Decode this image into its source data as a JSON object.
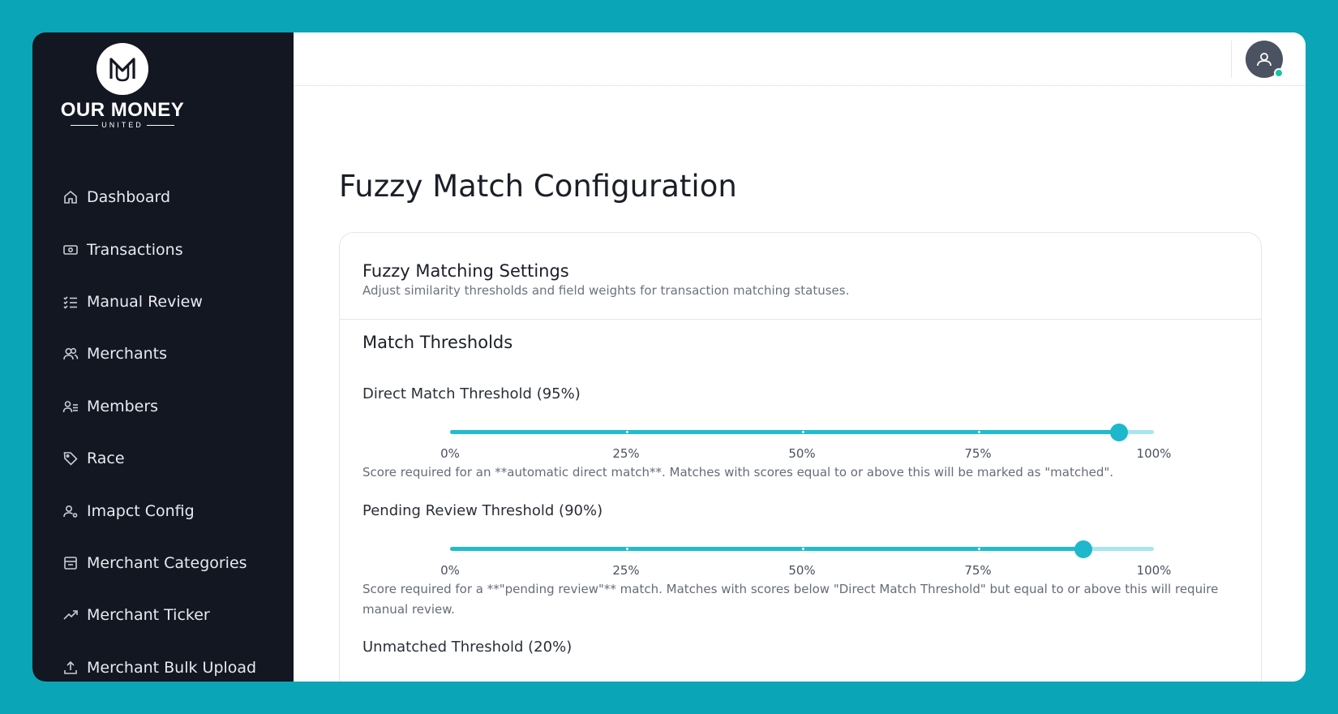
{
  "brand": {
    "name": "OUR MONEY",
    "tagline": "UNITED"
  },
  "sidebar": {
    "items": [
      {
        "label": "Dashboard",
        "icon": "home-icon"
      },
      {
        "label": "Transactions",
        "icon": "banknote-icon"
      },
      {
        "label": "Manual Review",
        "icon": "checklist-icon"
      },
      {
        "label": "Merchants",
        "icon": "users-icon"
      },
      {
        "label": "Members",
        "icon": "member-list-icon"
      },
      {
        "label": "Race",
        "icon": "tag-icon"
      },
      {
        "label": "Imapct Config",
        "icon": "user-gear-icon"
      },
      {
        "label": "Merchant Categories",
        "icon": "store-icon"
      },
      {
        "label": "Merchant Ticker",
        "icon": "trending-up-icon"
      },
      {
        "label": "Merchant Bulk Upload",
        "icon": "upload-icon"
      }
    ]
  },
  "header": {
    "avatar_status_color": "#17c4a8"
  },
  "page": {
    "title": "Fuzzy Match Configuration"
  },
  "card": {
    "title": "Fuzzy Matching Settings",
    "description": "Adjust similarity thresholds and field weights for transaction matching statuses.",
    "section_title": "Match Thresholds",
    "tick_labels": [
      "0%",
      "25%",
      "50%",
      "75%",
      "100%"
    ],
    "sliders": [
      {
        "label": "Direct Match Threshold (95%)",
        "value": 95,
        "help": "Score required for an **automatic direct match**. Matches with scores equal to or above this will be marked as \"matched\"."
      },
      {
        "label": "Pending Review Threshold (90%)",
        "value": 90,
        "help": "Score required for a **\"pending review\"** match. Matches with scores below \"Direct Match Threshold\" but equal to or above this will require manual review."
      },
      {
        "label": "Unmatched Threshold (20%)",
        "value": 20
      }
    ]
  },
  "colors": {
    "background": "#0aa5b6",
    "sidebar": "#131722",
    "accent": "#20bccf",
    "track": "#a8e6ee"
  }
}
